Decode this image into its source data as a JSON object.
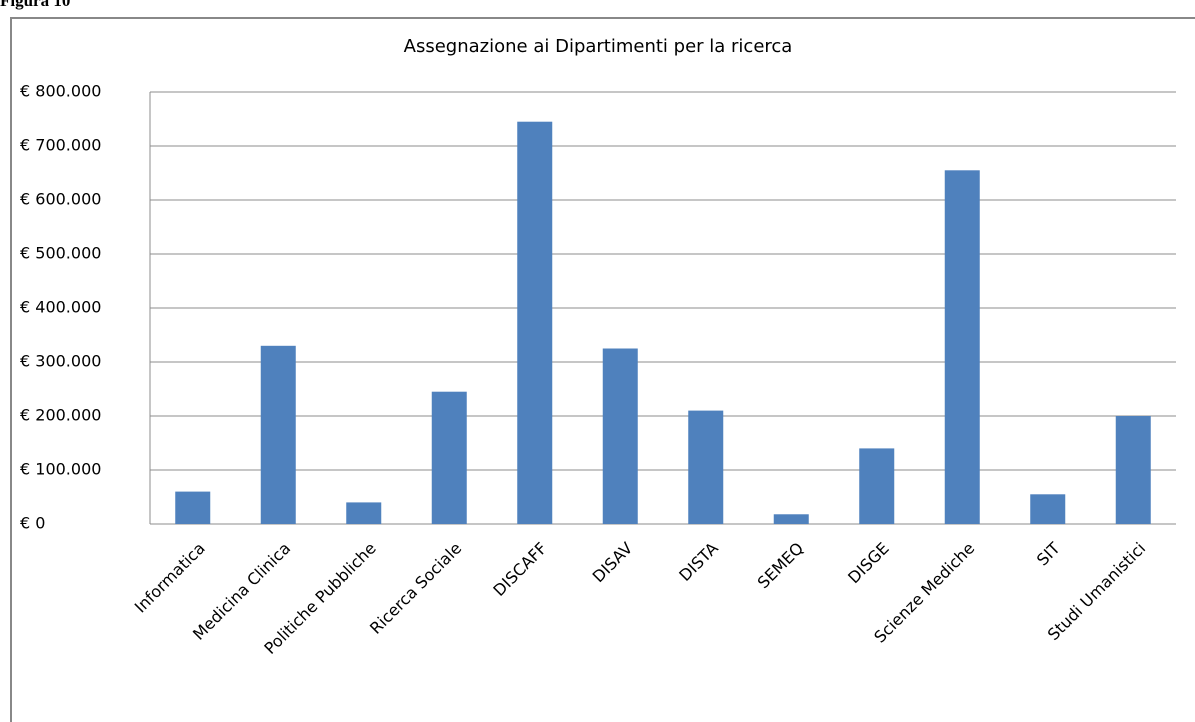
{
  "caption": "Figura 10",
  "chart_data": {
    "type": "bar",
    "title": "Assegnazione ai Dipartimenti per la ricerca",
    "categories": [
      "Informatica",
      "Medicina Clinica",
      "Politiche Pubbliche",
      "Ricerca Sociale",
      "DISCAFF",
      "DISAV",
      "DISTA",
      "SEMEQ",
      "DISGE",
      "Scienze Mediche",
      "SIT",
      "Studi Umanistici"
    ],
    "values": [
      60000,
      330000,
      40000,
      245000,
      745000,
      325000,
      210000,
      18000,
      140000,
      655000,
      55000,
      200000
    ],
    "color": "#4f81bd",
    "ylim": [
      0,
      800000
    ],
    "yticks": [
      {
        "value": 0,
        "label": "€ 0"
      },
      {
        "value": 100000,
        "label": "€ 100.000"
      },
      {
        "value": 200000,
        "label": "€ 200.000"
      },
      {
        "value": 300000,
        "label": "€ 300.000"
      },
      {
        "value": 400000,
        "label": "€ 400.000"
      },
      {
        "value": 500000,
        "label": "€ 500.000"
      },
      {
        "value": 600000,
        "label": "€ 600.000"
      },
      {
        "value": 700000,
        "label": "€ 700.000"
      },
      {
        "value": 800000,
        "label": "€ 800.000"
      }
    ],
    "grid": true
  }
}
